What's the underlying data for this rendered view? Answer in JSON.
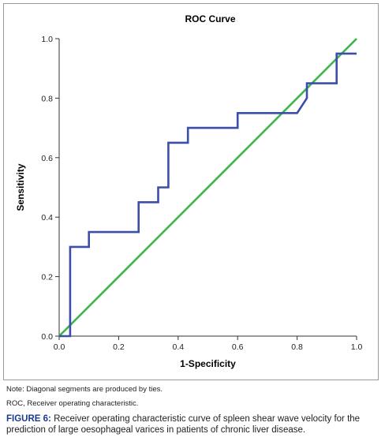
{
  "chart_data": {
    "type": "line",
    "title": "ROC Curve",
    "xlabel": "1-Specificity",
    "ylabel": "Sensitivity",
    "xlim": [
      0,
      1
    ],
    "ylim": [
      0,
      1
    ],
    "xticks": [
      "0.0",
      "0.2",
      "0.4",
      "0.6",
      "0.8",
      "1.0"
    ],
    "yticks": [
      "0.0",
      "0.2",
      "0.4",
      "0.6",
      "0.8",
      "1.0"
    ],
    "grid": false,
    "series": [
      {
        "color": "#3b4fa8",
        "x": [
          0.0,
          0.037,
          0.037,
          0.1,
          0.1,
          0.267,
          0.267,
          0.333,
          0.333,
          0.367,
          0.367,
          0.433,
          0.433,
          0.6,
          0.6,
          0.8,
          0.833,
          0.833,
          0.933,
          0.933,
          1.0
        ],
        "y": [
          0.0,
          0.0,
          0.3,
          0.3,
          0.35,
          0.35,
          0.45,
          0.45,
          0.5,
          0.5,
          0.65,
          0.65,
          0.7,
          0.7,
          0.75,
          0.75,
          0.8,
          0.85,
          0.85,
          0.95,
          0.95
        ]
      },
      {
        "color": "#3cb54a",
        "x": [
          0,
          1
        ],
        "y": [
          0,
          1
        ]
      }
    ]
  },
  "notes": {
    "note": "Note: Diagonal segments are produced by ties.",
    "abbreviation": "ROC, Receiver operating characteristic."
  },
  "caption": {
    "label": "FIGURE 6:",
    "text": " Receiver operating characteristic curve of spleen shear wave velocity for the prediction of large oesophageal varices in patients of chronic liver disease."
  }
}
